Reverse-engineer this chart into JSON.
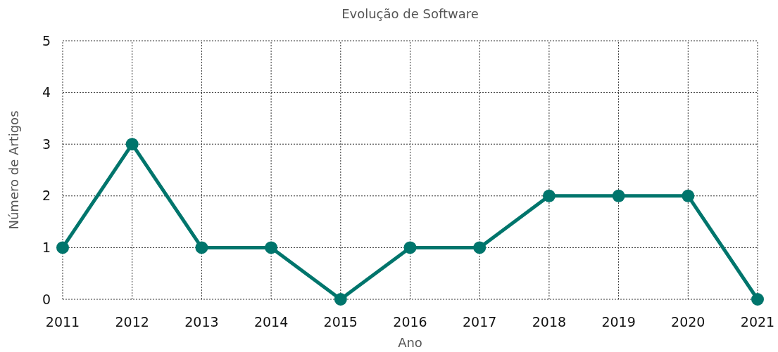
{
  "chart_data": {
    "type": "line",
    "title": "Evolução de Software",
    "xlabel": "Ano",
    "ylabel": "Número de Artigos",
    "x": [
      2011,
      2012,
      2013,
      2014,
      2015,
      2016,
      2017,
      2018,
      2019,
      2020,
      2021
    ],
    "series": [
      {
        "color": "#00756c",
        "values": [
          1,
          3,
          1,
          1,
          0,
          1,
          1,
          2,
          2,
          2,
          0
        ]
      }
    ],
    "xlim": [
      2011,
      2021
    ],
    "xticks": [
      2011,
      2012,
      2013,
      2014,
      2015,
      2016,
      2017,
      2018,
      2019,
      2020,
      2021
    ],
    "ylim": [
      0,
      5
    ],
    "yticks": [
      0,
      1,
      2,
      3,
      4,
      5
    ],
    "grid": true,
    "marker": "circle",
    "line_style": "solid"
  }
}
